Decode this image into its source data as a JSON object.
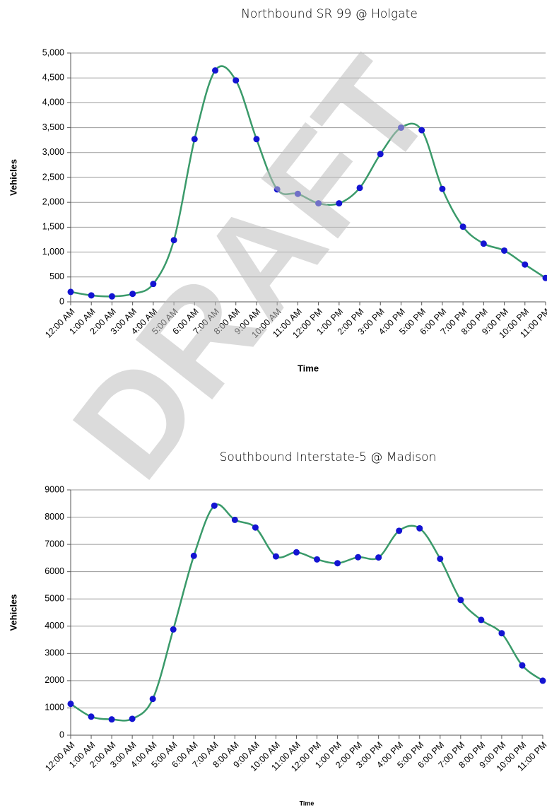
{
  "watermark": "DRAFT",
  "chart_data": [
    {
      "type": "line",
      "title": "Northbound SR 99 @ Holgate",
      "x_label": "Time",
      "y_label": "Vehicles",
      "categories": [
        "12:00 AM",
        "1:00 AM",
        "2:00 AM",
        "3:00 AM",
        "4:00 AM",
        "5:00 AM",
        "6:00 AM",
        "7:00 AM",
        "8:00 AM",
        "9:00 AM",
        "10:00 AM",
        "11:00 AM",
        "12:00 PM",
        "1:00 PM",
        "2:00 PM",
        "3:00 PM",
        "4:00 PM",
        "5:00 PM",
        "6:00 PM",
        "7:00 PM",
        "8:00 PM",
        "9:00 PM",
        "10:00 PM",
        "11:00 PM"
      ],
      "series": [
        {
          "name": "Vehicles",
          "color": "#3a9a6a",
          "marker_color": "#1414d2",
          "values": [
            200,
            130,
            110,
            160,
            360,
            1240,
            3270,
            4650,
            4450,
            3270,
            2260,
            2170,
            1980,
            1980,
            2290,
            2970,
            3500,
            3450,
            2270,
            1510,
            1170,
            1030,
            750,
            480
          ]
        }
      ],
      "ylim": [
        0,
        5000
      ],
      "yticks": [
        0,
        {
          "value": 500,
          "label": "500"
        },
        {
          "value": 1000,
          "label": "1,000"
        },
        {
          "value": 1500,
          "label": "1,500"
        },
        {
          "value": 2000,
          "label": "2,000"
        },
        {
          "value": 2500,
          "label": "2,500"
        },
        {
          "value": 3000,
          "label": "3,000"
        },
        {
          "value": 3500,
          "label": "3,500"
        },
        {
          "value": 4000,
          "label": "4,000"
        },
        {
          "value": 4500,
          "label": "4,500"
        },
        {
          "value": 5000,
          "label": "5,000"
        }
      ],
      "grid": true
    },
    {
      "type": "line",
      "title": "Southbound Interstate-5 @ Madison",
      "x_label": "Time",
      "y_label": "Vehicles",
      "categories": [
        "12:00 AM",
        "1:00 AM",
        "2:00 AM",
        "3:00 AM",
        "4:00 AM",
        "5:00 AM",
        "6:00 AM",
        "7:00 AM",
        "8:00 AM",
        "9:00 AM",
        "10:00 AM",
        "11:00 AM",
        "12:00 PM",
        "1:00 PM",
        "2:00 PM",
        "3:00 PM",
        "4:00 PM",
        "5:00 PM",
        "6:00 PM",
        "7:00 PM",
        "8:00 PM",
        "9:00 PM",
        "10:00 PM",
        "11:00 PM"
      ],
      "series": [
        {
          "name": "Vehicles",
          "color": "#3a9a6a",
          "marker_color": "#1414d2",
          "values": [
            1150,
            680,
            580,
            600,
            1330,
            3880,
            6580,
            8420,
            7900,
            7620,
            6560,
            6710,
            6450,
            6310,
            6530,
            6520,
            7500,
            7590,
            6470,
            4960,
            4230,
            3740,
            2560,
            2000
          ]
        }
      ],
      "ylim": [
        0,
        9000
      ],
      "yticks": [
        0,
        1000,
        2000,
        3000,
        4000,
        5000,
        6000,
        7000,
        8000,
        9000
      ],
      "grid": true
    }
  ]
}
